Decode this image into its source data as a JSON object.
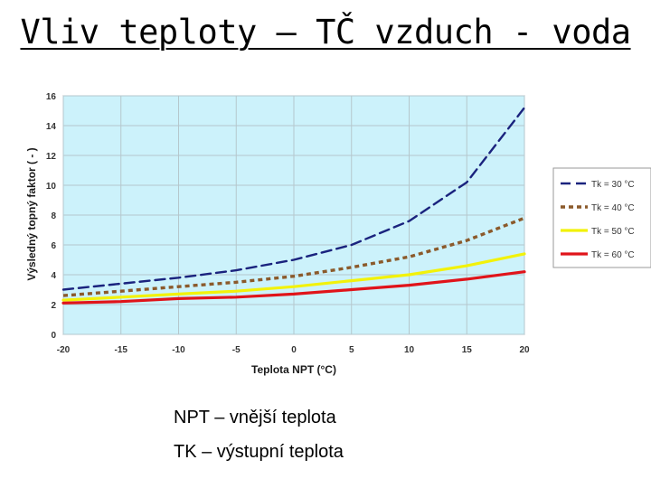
{
  "slide": {
    "title": "Vliv teploty – TČ vzduch - voda",
    "notes": [
      "NPT – vnější teplota",
      "TK – výstupní teplota"
    ]
  },
  "chart_data": {
    "type": "line",
    "title": "",
    "xlabel": "Teplota NPT (°C)",
    "ylabel": "Výsledný topný faktor ( - )",
    "x": [
      -20,
      -15,
      -10,
      -5,
      0,
      5,
      10,
      15,
      20
    ],
    "xlim": [
      -20,
      20
    ],
    "ylim": [
      0,
      16
    ],
    "x_ticks": [
      "-20",
      "-15",
      "-10",
      "-5",
      "0",
      "5",
      "10",
      "15",
      "20"
    ],
    "y_ticks": [
      "0",
      "2",
      "4",
      "6",
      "8",
      "10",
      "12",
      "14",
      "16"
    ],
    "grid": true,
    "plot_background": "#ccf2fb",
    "legend_position": "right",
    "series": [
      {
        "name": "Tk = 30 °C",
        "color": "#1a237e",
        "style": "dashed",
        "values": [
          3.0,
          3.4,
          3.8,
          4.3,
          5.0,
          6.0,
          7.6,
          10.2,
          15.2
        ]
      },
      {
        "name": "Tk = 40 °C",
        "color": "#8b5a2b",
        "style": "dotted",
        "values": [
          2.6,
          2.9,
          3.2,
          3.5,
          3.9,
          4.5,
          5.2,
          6.3,
          7.8
        ]
      },
      {
        "name": "Tk = 50 °C",
        "color": "#f2f20a",
        "style": "solid",
        "values": [
          2.3,
          2.5,
          2.7,
          2.9,
          3.2,
          3.6,
          4.0,
          4.6,
          5.4
        ]
      },
      {
        "name": "Tk = 60 °C",
        "color": "#e0141a",
        "style": "solid",
        "values": [
          2.1,
          2.2,
          2.4,
          2.5,
          2.7,
          3.0,
          3.3,
          3.7,
          4.2
        ]
      }
    ]
  }
}
